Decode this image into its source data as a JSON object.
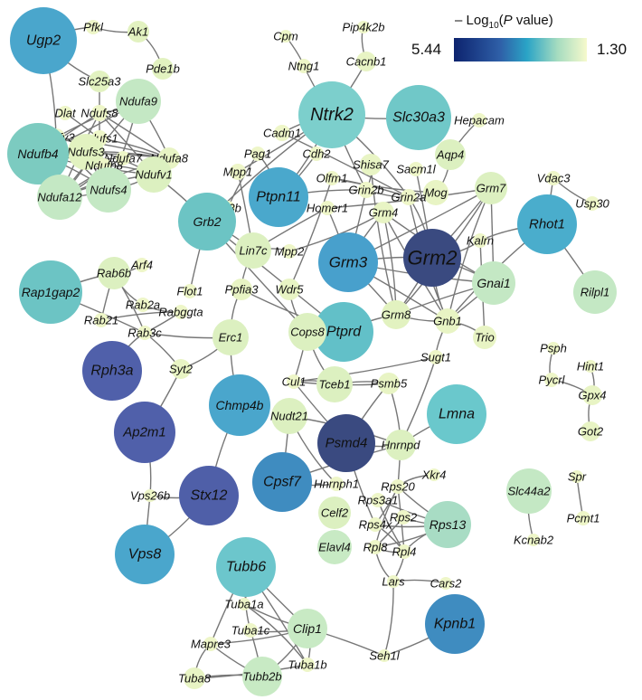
{
  "legend": {
    "title_prefix": "– Log",
    "title_sub": "10",
    "title_open": "(",
    "title_italic": "P",
    "title_rest": " value)",
    "max_label": "5.44",
    "min_label": "1.30",
    "gradient_colors": [
      "#0d236e",
      "#2aa4c6",
      "#f6f9cc"
    ]
  },
  "highlight": {
    "node": "Grm2",
    "label_color": "#ff00ff"
  },
  "nodes": [
    {
      "label": "Ugp2",
      "color": "#4aa6cc"
    },
    {
      "label": "Pfkl",
      "color": "#eef6c8"
    },
    {
      "label": "Ak1",
      "color": "#e2f2c0"
    },
    {
      "label": "Pde1b",
      "color": "#e2f2c0"
    },
    {
      "label": "Slc25a3",
      "color": "#e2f2c0"
    },
    {
      "label": "Dlat",
      "color": "#eef6c8"
    },
    {
      "label": "Ndufs8",
      "color": "#eef6c8"
    },
    {
      "label": "Ndufa9",
      "color": "#c4e8c4"
    },
    {
      "label": "Ndufv3",
      "color": "#eef6c8"
    },
    {
      "label": "Ndufs1",
      "color": "#eef6c8"
    },
    {
      "label": "Ndufa7",
      "color": "#eef6c8"
    },
    {
      "label": "Ndufa8",
      "color": "#e8f4c4"
    },
    {
      "label": "Ndufs3",
      "color": "#e2f2c0"
    },
    {
      "label": "Ndufb4",
      "color": "#7ccbc0"
    },
    {
      "label": "Ndufb8",
      "color": "#eef6c8"
    },
    {
      "label": "Ndufv1",
      "color": "#dcf0c0"
    },
    {
      "label": "Ndufa12",
      "color": "#c4e8c4"
    },
    {
      "label": "Ndufs4",
      "color": "#c4e8c4"
    },
    {
      "label": "Cpm",
      "color": "#eef6c8"
    },
    {
      "label": "Pip4k2b",
      "color": "#eef6c8"
    },
    {
      "label": "Ntng1",
      "color": "#eef6c8"
    },
    {
      "label": "Cacnb1",
      "color": "#e8f4c4"
    },
    {
      "label": "Ntrk2",
      "color": "#7ccfcc"
    },
    {
      "label": "Slc30a3",
      "color": "#70c8c8"
    },
    {
      "label": "Hepacam",
      "color": "#eef6c8"
    },
    {
      "label": "Cadm1",
      "color": "#eef6c8"
    },
    {
      "label": "Cdh2",
      "color": "#eef6c8"
    },
    {
      "label": "Pag1",
      "color": "#eef6c8"
    },
    {
      "label": "Aqp4",
      "color": "#dcf0c0"
    },
    {
      "label": "Mpp1",
      "color": "#eef6c8"
    },
    {
      "label": "Shisa7",
      "color": "#e8f4c4"
    },
    {
      "label": "Sacm1l",
      "color": "#eef6c8"
    },
    {
      "label": "Olfm1",
      "color": "#eef6c8"
    },
    {
      "label": "Mog",
      "color": "#e8f4c4"
    },
    {
      "label": "Grin2b",
      "color": "#eef6c8"
    },
    {
      "label": "Grin2a",
      "color": "#eef6c8"
    },
    {
      "label": "Grm4",
      "color": "#e8f4c4"
    },
    {
      "label": "Homer1",
      "color": "#eef6c8"
    },
    {
      "label": "Grm7",
      "color": "#dcf0c0"
    },
    {
      "label": "Kif3b",
      "color": "#eef6c8"
    },
    {
      "label": "Ptpn11",
      "color": "#4aa8cc"
    },
    {
      "label": "Grb2",
      "color": "#6cc4c4"
    },
    {
      "label": "Arf4",
      "color": "#eef6c8"
    },
    {
      "label": "Lin7c",
      "color": "#dcf0c0"
    },
    {
      "label": "Mpp2",
      "color": "#eef6c8"
    },
    {
      "label": "Grm3",
      "color": "#48a0cc"
    },
    {
      "label": "Grm2",
      "color": "#3a4a80"
    },
    {
      "label": "Kalrn",
      "color": "#eef6c8"
    },
    {
      "label": "Gnai1",
      "color": "#c4e8c4"
    },
    {
      "label": "Rhot1",
      "color": "#4aadcc"
    },
    {
      "label": "Vdac3",
      "color": "#eef6c8"
    },
    {
      "label": "Usp30",
      "color": "#eef6c8"
    },
    {
      "label": "Rilpl1",
      "color": "#c4e8c4"
    },
    {
      "label": "Ppfia3",
      "color": "#e8f4c4"
    },
    {
      "label": "Wdr5",
      "color": "#e8f4c4"
    },
    {
      "label": "Flot1",
      "color": "#eef6c8"
    },
    {
      "label": "Rab6b",
      "color": "#dcf0c0"
    },
    {
      "label": "Rap1gap2",
      "color": "#6cc4c4"
    },
    {
      "label": "Rab2a",
      "color": "#eef6c8"
    },
    {
      "label": "Rab21",
      "color": "#eef6c8"
    },
    {
      "label": "Rabggta",
      "color": "#eef6c8"
    },
    {
      "label": "Rab3c",
      "color": "#eef6c8"
    },
    {
      "label": "Grm8",
      "color": "#e2f2c0"
    },
    {
      "label": "Gnb1",
      "color": "#e8f4c4"
    },
    {
      "label": "Trio",
      "color": "#e8f4c4"
    },
    {
      "label": "Ptprd",
      "color": "#62c0c8"
    },
    {
      "label": "Cops8",
      "color": "#dcf0c0"
    },
    {
      "label": "Erc1",
      "color": "#dcf0c0"
    },
    {
      "label": "Rph3a",
      "color": "#5060aa"
    },
    {
      "label": "Syt2",
      "color": "#e8f4c4"
    },
    {
      "label": "Sugt1",
      "color": "#eef6c8"
    },
    {
      "label": "Cul1",
      "color": "#eef6c8"
    },
    {
      "label": "Tceb1",
      "color": "#dcf0c0"
    },
    {
      "label": "Psmb5",
      "color": "#e8f4c4"
    },
    {
      "label": "Chmp4b",
      "color": "#4aa6cc"
    },
    {
      "label": "Nudt21",
      "color": "#dcf0c0"
    },
    {
      "label": "Lmna",
      "color": "#6ac8cc"
    },
    {
      "label": "Psmd4",
      "color": "#3a4a80"
    },
    {
      "label": "Hnrnpd",
      "color": "#dcf0c0"
    },
    {
      "label": "Ap2m1",
      "color": "#5060aa"
    },
    {
      "label": "Psph",
      "color": "#eef6c8"
    },
    {
      "label": "Pycrl",
      "color": "#eef6c8"
    },
    {
      "label": "Hint1",
      "color": "#eef6c8"
    },
    {
      "label": "Gpx4",
      "color": "#e8f4c4"
    },
    {
      "label": "Got2",
      "color": "#e8f4c4"
    },
    {
      "label": "Cpsf7",
      "color": "#3f8cc0"
    },
    {
      "label": "Hnrnph1",
      "color": "#eef6c8"
    },
    {
      "label": "Xkr4",
      "color": "#eef6c8"
    },
    {
      "label": "Rps20",
      "color": "#eef6c8"
    },
    {
      "label": "Stx12",
      "color": "#4f5fa8"
    },
    {
      "label": "Vps26b",
      "color": "#eef6c8"
    },
    {
      "label": "Rps3a1",
      "color": "#eef6c8"
    },
    {
      "label": "Celf2",
      "color": "#dcf0c0"
    },
    {
      "label": "Rps2",
      "color": "#eef6c8"
    },
    {
      "label": "Rps4x",
      "color": "#eef6c8"
    },
    {
      "label": "Rps13",
      "color": "#a8dcc4"
    },
    {
      "label": "Slc44a2",
      "color": "#c4e8c4"
    },
    {
      "label": "Spr",
      "color": "#eef6c8"
    },
    {
      "label": "Pcmt1",
      "color": "#eef6c8"
    },
    {
      "label": "Kcnab2",
      "color": "#eef6c8"
    },
    {
      "label": "Vps8",
      "color": "#4aa6cc"
    },
    {
      "label": "Elavl4",
      "color": "#c8eac4"
    },
    {
      "label": "Rpl8",
      "color": "#eef6c8"
    },
    {
      "label": "Rpl4",
      "color": "#eef6c8"
    },
    {
      "label": "Lars",
      "color": "#eef6c8"
    },
    {
      "label": "Cars2",
      "color": "#eef6c8"
    },
    {
      "label": "Tubb6",
      "color": "#6cc6cc"
    },
    {
      "label": "Tuba1a",
      "color": "#eef6c8"
    },
    {
      "label": "Clip1",
      "color": "#c8eac4"
    },
    {
      "label": "Tuba1c",
      "color": "#eef6c8"
    },
    {
      "label": "Mapre3",
      "color": "#eef6c8"
    },
    {
      "label": "Tuba1b",
      "color": "#eef6c8"
    },
    {
      "label": "Kpnb1",
      "color": "#3f8cc0"
    },
    {
      "label": "Seh1l",
      "color": "#eef6c8"
    },
    {
      "label": "Tuba8",
      "color": "#e8f4c4"
    },
    {
      "label": "Tubb2b",
      "color": "#c8eac4"
    }
  ],
  "edges": [
    [
      "Ugp2",
      "Pfkl"
    ],
    [
      "Pfkl",
      "Ak1"
    ],
    [
      "Ak1",
      "Pde1b"
    ],
    [
      "Ugp2",
      "Slc25a3"
    ],
    [
      "Slc25a3",
      "Ndufs8"
    ],
    [
      "Ugp2",
      "Ndufv3"
    ],
    [
      "Dlat",
      "Ndufs1"
    ],
    [
      "Ndufs8",
      "Ndufa9"
    ],
    [
      "Ndufs8",
      "Ndufb4"
    ],
    [
      "Ndufs8",
      "Ndufs4"
    ],
    [
      "Ndufs8",
      "Ndufa12"
    ],
    [
      "Ndufs8",
      "Ndufv1"
    ],
    [
      "Ndufs8",
      "Ndufa8"
    ],
    [
      "Ndufa9",
      "Ndufb4"
    ],
    [
      "Ndufa9",
      "Ndufs4"
    ],
    [
      "Ndufa9",
      "Ndufa12"
    ],
    [
      "Ndufa9",
      "Ndufv3"
    ],
    [
      "Ndufa9",
      "Ndufa8"
    ],
    [
      "Ndufv3",
      "Ndufa8"
    ],
    [
      "Ndufv3",
      "Ndufs4"
    ],
    [
      "Ndufv3",
      "Ndufv1"
    ],
    [
      "Ndufv3",
      "Ndufa12"
    ],
    [
      "Ndufs1",
      "Ndufa8"
    ],
    [
      "Ndufs1",
      "Ndufa12"
    ],
    [
      "Ndufs1",
      "Ndufs4"
    ],
    [
      "Ndufs1",
      "Ndufb4"
    ],
    [
      "Ndufb4",
      "Ndufa8"
    ],
    [
      "Ndufb4",
      "Ndufv1"
    ],
    [
      "Ndufb4",
      "Ndufs4"
    ],
    [
      "Ndufb4",
      "Ndufa12"
    ],
    [
      "Ndufs3",
      "Ndufa8"
    ],
    [
      "Ndufs3",
      "Ndufs4"
    ],
    [
      "Ndufa7",
      "Ndufa12"
    ],
    [
      "Ndufa7",
      "Ndufb4"
    ],
    [
      "Ndufb8",
      "Ndufv1"
    ],
    [
      "Ndufb8",
      "Ndufa12"
    ],
    [
      "Ndufv1",
      "Ndufa12"
    ],
    [
      "Ndufv1",
      "Ndufs4"
    ],
    [
      "Ndufa8",
      "Ndufa12"
    ],
    [
      "Ndufa12",
      "Ndufs4"
    ],
    [
      "Ndufv1",
      "Grb2"
    ],
    [
      "Cpm",
      "Ntng1"
    ],
    [
      "Pip4k2b",
      "Cacnb1"
    ],
    [
      "Ntng1",
      "Ntrk2"
    ],
    [
      "Cacnb1",
      "Ntrk2"
    ],
    [
      "Ntrk2",
      "Slc30a3"
    ],
    [
      "Ntrk2",
      "Cadm1"
    ],
    [
      "Ntrk2",
      "Ptpn11"
    ],
    [
      "Ntrk2",
      "Grb2"
    ],
    [
      "Ntrk2",
      "Grin2b"
    ],
    [
      "Ntrk2",
      "Grin2a"
    ],
    [
      "Ntrk2",
      "Mpp1"
    ],
    [
      "Hepacam",
      "Aqp4"
    ],
    [
      "Aqp4",
      "Mog"
    ],
    [
      "Cadm1",
      "Grin2a"
    ],
    [
      "Cdh2",
      "Ptpn11"
    ],
    [
      "Pag1",
      "Ptpn11"
    ],
    [
      "Pag1",
      "Kif3b"
    ],
    [
      "Mpp1",
      "Lin7c"
    ],
    [
      "Kif3b",
      "Grb2"
    ],
    [
      "Olfm1",
      "Grin2a"
    ],
    [
      "Olfm1",
      "Mog"
    ],
    [
      "Shisa7",
      "Grin2b"
    ],
    [
      "Shisa7",
      "Grm8"
    ],
    [
      "Sacm1l",
      "Grm2"
    ],
    [
      "Grin2b",
      "Grin2a"
    ],
    [
      "Grin2b",
      "Ptpn11"
    ],
    [
      "Grin2b",
      "Grm3"
    ],
    [
      "Grin2a",
      "Grm2"
    ],
    [
      "Grin2a",
      "Gnb1"
    ],
    [
      "Grm4",
      "Grm3"
    ],
    [
      "Grm4",
      "Grm8"
    ],
    [
      "Grm4",
      "Gnb1"
    ],
    [
      "Grm4",
      "Gnai1"
    ],
    [
      "Homer1",
      "Lin7c"
    ],
    [
      "Homer1",
      "Grm7"
    ],
    [
      "Homer1",
      "Grm3"
    ],
    [
      "Grm7",
      "Grm8"
    ],
    [
      "Grm7",
      "Gnb1"
    ],
    [
      "Grm7",
      "Gnai1"
    ],
    [
      "Grm7",
      "Grm2"
    ],
    [
      "Grm7",
      "Grm3"
    ],
    [
      "Grm3",
      "Grm2"
    ],
    [
      "Grm3",
      "Grm8"
    ],
    [
      "Grm3",
      "Gnb1"
    ],
    [
      "Grm3",
      "Gnai1"
    ],
    [
      "Grm2",
      "Grm8"
    ],
    [
      "Grm2",
      "Gnb1"
    ],
    [
      "Grm2",
      "Gnai1"
    ],
    [
      "Grm2",
      "Kalrn"
    ],
    [
      "Kalrn",
      "Rhot1"
    ],
    [
      "Kalrn",
      "Trio"
    ],
    [
      "Gnai1",
      "Grm8"
    ],
    [
      "Gnai1",
      "Gnb1"
    ],
    [
      "Rhot1",
      "Vdac3"
    ],
    [
      "Rhot1",
      "Rilpl1"
    ],
    [
      "Rhot1",
      "Gnb1"
    ],
    [
      "Vdac3",
      "Usp30"
    ],
    [
      "Lin7c",
      "Mpp2"
    ],
    [
      "Lin7c",
      "Ppfia3"
    ],
    [
      "Lin7c",
      "Grb2"
    ],
    [
      "Mpp2",
      "Grm4"
    ],
    [
      "Ppfia3",
      "Erc1"
    ],
    [
      "Ppfia3",
      "Ptprd"
    ],
    [
      "Wdr5",
      "Olfm1"
    ],
    [
      "Wdr5",
      "Cops8"
    ],
    [
      "Grb2",
      "Flot1"
    ],
    [
      "Grb2",
      "Ptprd"
    ],
    [
      "Grb2",
      "Cops8"
    ],
    [
      "Arf4",
      "Rab6b"
    ],
    [
      "Rab6b",
      "Rap1gap2"
    ],
    [
      "Rab6b",
      "Rab2a"
    ],
    [
      "Rab6b",
      "Rab21"
    ],
    [
      "Rab6b",
      "Rab3c"
    ],
    [
      "Rap1gap2",
      "Rab3c"
    ],
    [
      "Rab2a",
      "Rabggta"
    ],
    [
      "Rab21",
      "Rabggta"
    ],
    [
      "Rab3c",
      "Rabggta"
    ],
    [
      "Rab3c",
      "Syt2"
    ],
    [
      "Rab3c",
      "Erc1"
    ],
    [
      "Rab3c",
      "Rph3a"
    ],
    [
      "Grm8",
      "Gnb1"
    ],
    [
      "Gnb1",
      "Trio"
    ],
    [
      "Gnb1",
      "Sugt1"
    ],
    [
      "Ptprd",
      "Grm8"
    ],
    [
      "Erc1",
      "Syt2"
    ],
    [
      "Erc1",
      "Chmp4b"
    ],
    [
      "Syt2",
      "Ap2m1"
    ],
    [
      "Sugt1",
      "Hnrnpd"
    ],
    [
      "Sugt1",
      "Cul1"
    ],
    [
      "Cul1",
      "Tceb1"
    ],
    [
      "Cul1",
      "Psmb5"
    ],
    [
      "Cul1",
      "Psmd4"
    ],
    [
      "Cul1",
      "Cops8"
    ],
    [
      "Tceb1",
      "Psmb5"
    ],
    [
      "Tceb1",
      "Cops8"
    ],
    [
      "Psmb5",
      "Psmd4"
    ],
    [
      "Psmb5",
      "Hnrnpd"
    ],
    [
      "Chmp4b",
      "Stx12"
    ],
    [
      "Nudt21",
      "Cpsf7"
    ],
    [
      "Nudt21",
      "Hnrnpd"
    ],
    [
      "Nudt21",
      "Hnrnph1"
    ],
    [
      "Lmna",
      "Hnrnpd"
    ],
    [
      "Psmd4",
      "Hnrnpd"
    ],
    [
      "Psmd4",
      "Rps4x"
    ],
    [
      "Hnrnpd",
      "Rps20"
    ],
    [
      "Hnrnpd",
      "Cpsf7"
    ],
    [
      "Psph",
      "Pycrl"
    ],
    [
      "Pycrl",
      "Gpx4"
    ],
    [
      "Hint1",
      "Gpx4"
    ],
    [
      "Gpx4",
      "Got2"
    ],
    [
      "Cpsf7",
      "Hnrnph1"
    ],
    [
      "Ap2m1",
      "Vps26b"
    ],
    [
      "Stx12",
      "Vps26b"
    ],
    [
      "Vps26b",
      "Vps8"
    ],
    [
      "Stx12",
      "Vps8"
    ],
    [
      "Rps20",
      "Xkr4"
    ],
    [
      "Rps20",
      "Rps13"
    ],
    [
      "Rps20",
      "Rps4x"
    ],
    [
      "Rps20",
      "Rpl8"
    ],
    [
      "Rps20",
      "Rpl4"
    ],
    [
      "Rps3a1",
      "Rps13"
    ],
    [
      "Rps3a1",
      "Rpl4"
    ],
    [
      "Rps2",
      "Rps13"
    ],
    [
      "Rps2",
      "Rpl8"
    ],
    [
      "Rps4x",
      "Rps13"
    ],
    [
      "Rps4x",
      "Rpl4"
    ],
    [
      "Rpl8",
      "Rps13"
    ],
    [
      "Rpl4",
      "Rps13"
    ],
    [
      "Rpl8",
      "Rpl4"
    ],
    [
      "Rpl4",
      "Lars"
    ],
    [
      "Rpl8",
      "Lars"
    ],
    [
      "Lars",
      "Cars2"
    ],
    [
      "Lars",
      "Seh1l"
    ],
    [
      "Slc44a2",
      "Kcnab2"
    ],
    [
      "Spr",
      "Pcmt1"
    ],
    [
      "Tubb6",
      "Tuba1a"
    ],
    [
      "Tubb6",
      "Tuba1c"
    ],
    [
      "Tubb6",
      "Mapre3"
    ],
    [
      "Tubb6",
      "Tuba1b"
    ],
    [
      "Tubb6",
      "Clip1"
    ],
    [
      "Tuba1a",
      "Clip1"
    ],
    [
      "Tuba1a",
      "Tuba1b"
    ],
    [
      "Tuba1c",
      "Clip1"
    ],
    [
      "Tuba1c",
      "Tubb2b"
    ],
    [
      "Mapre3",
      "Clip1"
    ],
    [
      "Mapre3",
      "Tuba8"
    ],
    [
      "Mapre3",
      "Tubb2b"
    ],
    [
      "Tuba1b",
      "Clip1"
    ],
    [
      "Tuba1b",
      "Tuba8"
    ],
    [
      "Tuba8",
      "Tubb2b"
    ],
    [
      "Tubb2b",
      "Clip1"
    ],
    [
      "Clip1",
      "Seh1l"
    ],
    [
      "Seh1l",
      "Kpnb1"
    ]
  ]
}
